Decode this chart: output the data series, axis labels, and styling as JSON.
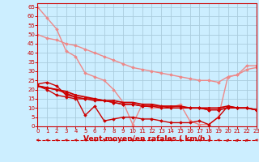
{
  "background_color": "#cceeff",
  "grid_color": "#aaccdd",
  "line_color_dark": "#cc0000",
  "xlabel": "Vent moyen/en rafales ( km/h )",
  "xlabel_color": "#cc0000",
  "xlabel_fontsize": 6.5,
  "yticks": [
    0,
    5,
    10,
    15,
    20,
    25,
    30,
    35,
    40,
    45,
    50,
    55,
    60,
    65
  ],
  "xticks": [
    0,
    1,
    2,
    3,
    4,
    5,
    6,
    7,
    8,
    9,
    10,
    11,
    12,
    13,
    14,
    15,
    16,
    17,
    18,
    19,
    20,
    21,
    22,
    23
  ],
  "ylim": [
    0,
    67
  ],
  "xlim": [
    0,
    23
  ],
  "series": [
    {
      "x": [
        0,
        1,
        2,
        3,
        4,
        5,
        6,
        7,
        8,
        9,
        10,
        11,
        12,
        13,
        14,
        15,
        16,
        17,
        18,
        19,
        20,
        21,
        22,
        23
      ],
      "y": [
        65,
        59,
        53,
        41,
        38,
        29,
        27,
        25,
        20,
        13,
        1,
        12,
        10,
        10,
        10,
        12,
        3,
        1,
        1,
        5,
        27,
        28,
        33,
        33
      ],
      "color": "#ee8888",
      "lw": 1.0,
      "marker": "D",
      "ms": 1.8
    },
    {
      "x": [
        0,
        1,
        2,
        3,
        4,
        5,
        6,
        7,
        8,
        9,
        10,
        11,
        12,
        13,
        14,
        15,
        16,
        17,
        18,
        19,
        20,
        21,
        22,
        23
      ],
      "y": [
        50,
        48,
        47,
        45,
        44,
        42,
        40,
        38,
        36,
        34,
        32,
        31,
        30,
        29,
        28,
        27,
        26,
        25,
        25,
        24,
        27,
        28,
        31,
        32
      ],
      "color": "#ee8888",
      "lw": 1.0,
      "marker": "D",
      "ms": 1.8
    },
    {
      "x": [
        0,
        1,
        2,
        3,
        4,
        5,
        6,
        7,
        8,
        9,
        10,
        11,
        12,
        13,
        14,
        15,
        16,
        17,
        18,
        19,
        20,
        21,
        22,
        23
      ],
      "y": [
        23,
        24,
        22,
        17,
        16,
        6,
        11,
        3,
        4,
        5,
        5,
        4,
        4,
        3,
        2,
        2,
        2,
        3,
        1,
        5,
        11,
        10,
        10,
        9
      ],
      "color": "#cc0000",
      "lw": 1.0,
      "marker": "D",
      "ms": 1.8
    },
    {
      "x": [
        0,
        1,
        2,
        3,
        4,
        5,
        6,
        7,
        8,
        9,
        10,
        11,
        12,
        13,
        14,
        15,
        16,
        17,
        18,
        19,
        20,
        21,
        22,
        23
      ],
      "y": [
        22,
        21,
        20,
        19,
        17,
        16,
        15,
        14,
        14,
        13,
        13,
        12,
        12,
        11,
        11,
        11,
        10,
        10,
        10,
        10,
        11,
        10,
        10,
        9
      ],
      "color": "#cc0000",
      "lw": 1.3,
      "marker": "s",
      "ms": 1.8
    },
    {
      "x": [
        0,
        1,
        2,
        3,
        4,
        5,
        6,
        7,
        8,
        9,
        10,
        11,
        12,
        13,
        14,
        15,
        16,
        17,
        18,
        19,
        20,
        21,
        22,
        23
      ],
      "y": [
        22,
        21,
        20,
        18,
        16,
        15,
        14,
        14,
        13,
        12,
        12,
        11,
        11,
        10,
        10,
        10,
        10,
        10,
        9,
        9,
        10,
        10,
        10,
        9
      ],
      "color": "#cc0000",
      "lw": 1.0,
      "marker": "D",
      "ms": 1.8
    },
    {
      "x": [
        0,
        1,
        2,
        3,
        4,
        5,
        6,
        7,
        8,
        9,
        10,
        11,
        12,
        13,
        14,
        15,
        16,
        17,
        18,
        19,
        20,
        21,
        22,
        23
      ],
      "y": [
        22,
        20,
        17,
        16,
        15,
        15,
        15,
        14,
        13,
        12,
        12,
        11,
        11,
        11,
        10,
        10,
        10,
        10,
        9,
        9,
        10,
        10,
        10,
        9
      ],
      "color": "#cc0000",
      "lw": 1.0,
      "marker": "D",
      "ms": 1.8
    }
  ],
  "tick_fontsize": 5,
  "tick_color": "#cc0000",
  "spine_color": "#cc0000"
}
